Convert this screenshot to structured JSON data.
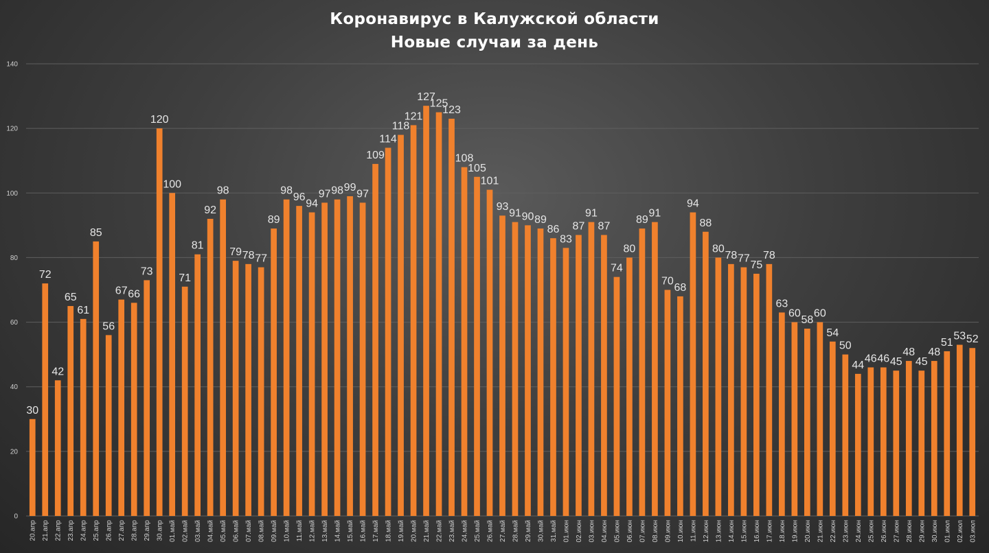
{
  "chart_data": {
    "type": "bar",
    "title": "Коронавирус в Калужской области",
    "subtitle": "Новые случаи за день",
    "xlabel": "",
    "ylabel": "",
    "ylim": [
      0,
      140
    ],
    "yticks": [
      0,
      20,
      40,
      60,
      80,
      100,
      120,
      140
    ],
    "grid": true,
    "bar_color": "#f0812d",
    "categories": [
      "20.апр",
      "21.апр",
      "22.апр",
      "23.апр",
      "24.апр",
      "25.апр",
      "26.апр",
      "27.апр",
      "28.апр",
      "29.апр",
      "30.апр",
      "01.май",
      "02.май",
      "03.май",
      "04.май",
      "05.май",
      "06.май",
      "07.май",
      "08.май",
      "09.май",
      "10.май",
      "11.май",
      "12.май",
      "13.май",
      "14.май",
      "15.май",
      "16.май",
      "17.май",
      "18.май",
      "19.май",
      "20.май",
      "21.май",
      "22.май",
      "23.май",
      "24.май",
      "25.май",
      "26.май",
      "27.май",
      "28.май",
      "29.май",
      "30.май",
      "31.май",
      "01.июн",
      "02.июн",
      "03.июн",
      "04.июн",
      "05.июн",
      "06.июн",
      "07.июн",
      "08.июн",
      "09.июн",
      "10.июн",
      "11.июн",
      "12.июн",
      "13.июн",
      "14.июн",
      "15.июн",
      "16.июн",
      "17.июн",
      "18.июн",
      "19.июн",
      "20.июн",
      "21.июн",
      "22.июн",
      "23.июн",
      "24.июн",
      "25.июн",
      "26.июн",
      "27.июн",
      "28.июн",
      "29.июн",
      "30.июн",
      "01.июл",
      "02.июл",
      "03.июл"
    ],
    "values": [
      30,
      72,
      42,
      65,
      61,
      85,
      56,
      67,
      66,
      73,
      120,
      100,
      71,
      81,
      92,
      98,
      79,
      78,
      77,
      89,
      98,
      96,
      94,
      97,
      98,
      99,
      97,
      109,
      114,
      118,
      121,
      127,
      125,
      123,
      108,
      105,
      101,
      93,
      91,
      90,
      89,
      86,
      83,
      87,
      91,
      87,
      74,
      80,
      89,
      91,
      70,
      68,
      94,
      88,
      80,
      78,
      77,
      75,
      78,
      63,
      60,
      58,
      60,
      54,
      50,
      44,
      46,
      46,
      45,
      48,
      45,
      48,
      51,
      53,
      52
    ]
  }
}
